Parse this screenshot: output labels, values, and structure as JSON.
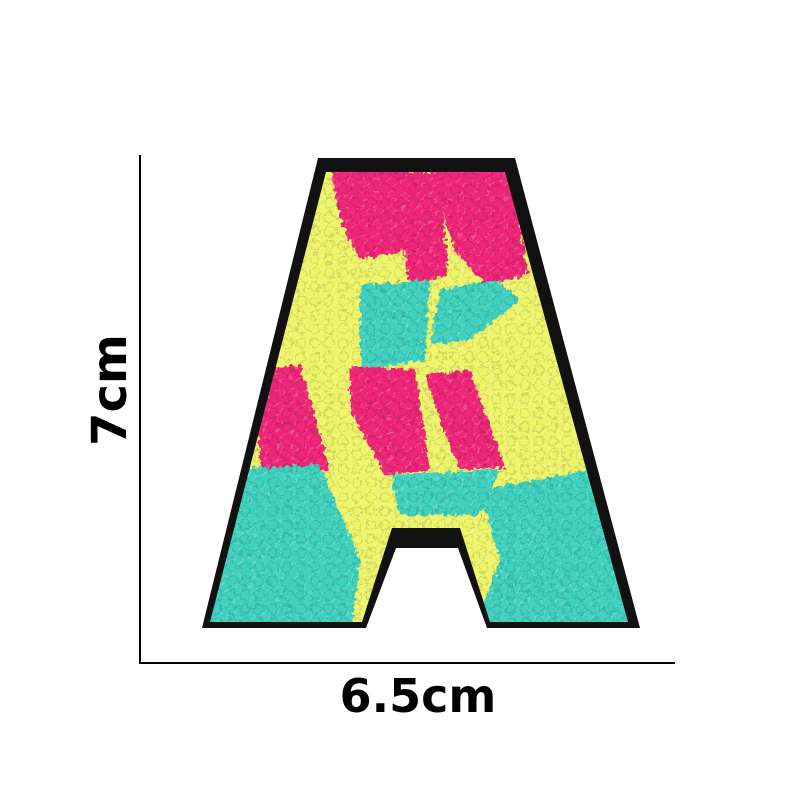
{
  "image": {
    "subject": "chenille-letter-a-patch-icon",
    "dimensions": {
      "height_label": "7cm",
      "width_label": "6.5cm"
    },
    "colors": {
      "background": "#ffffff",
      "backing": "#111111",
      "pink": "#f0287a",
      "yellow": "#eef56a",
      "teal": "#3fd1bf",
      "ruler_lines": "#000000"
    }
  }
}
